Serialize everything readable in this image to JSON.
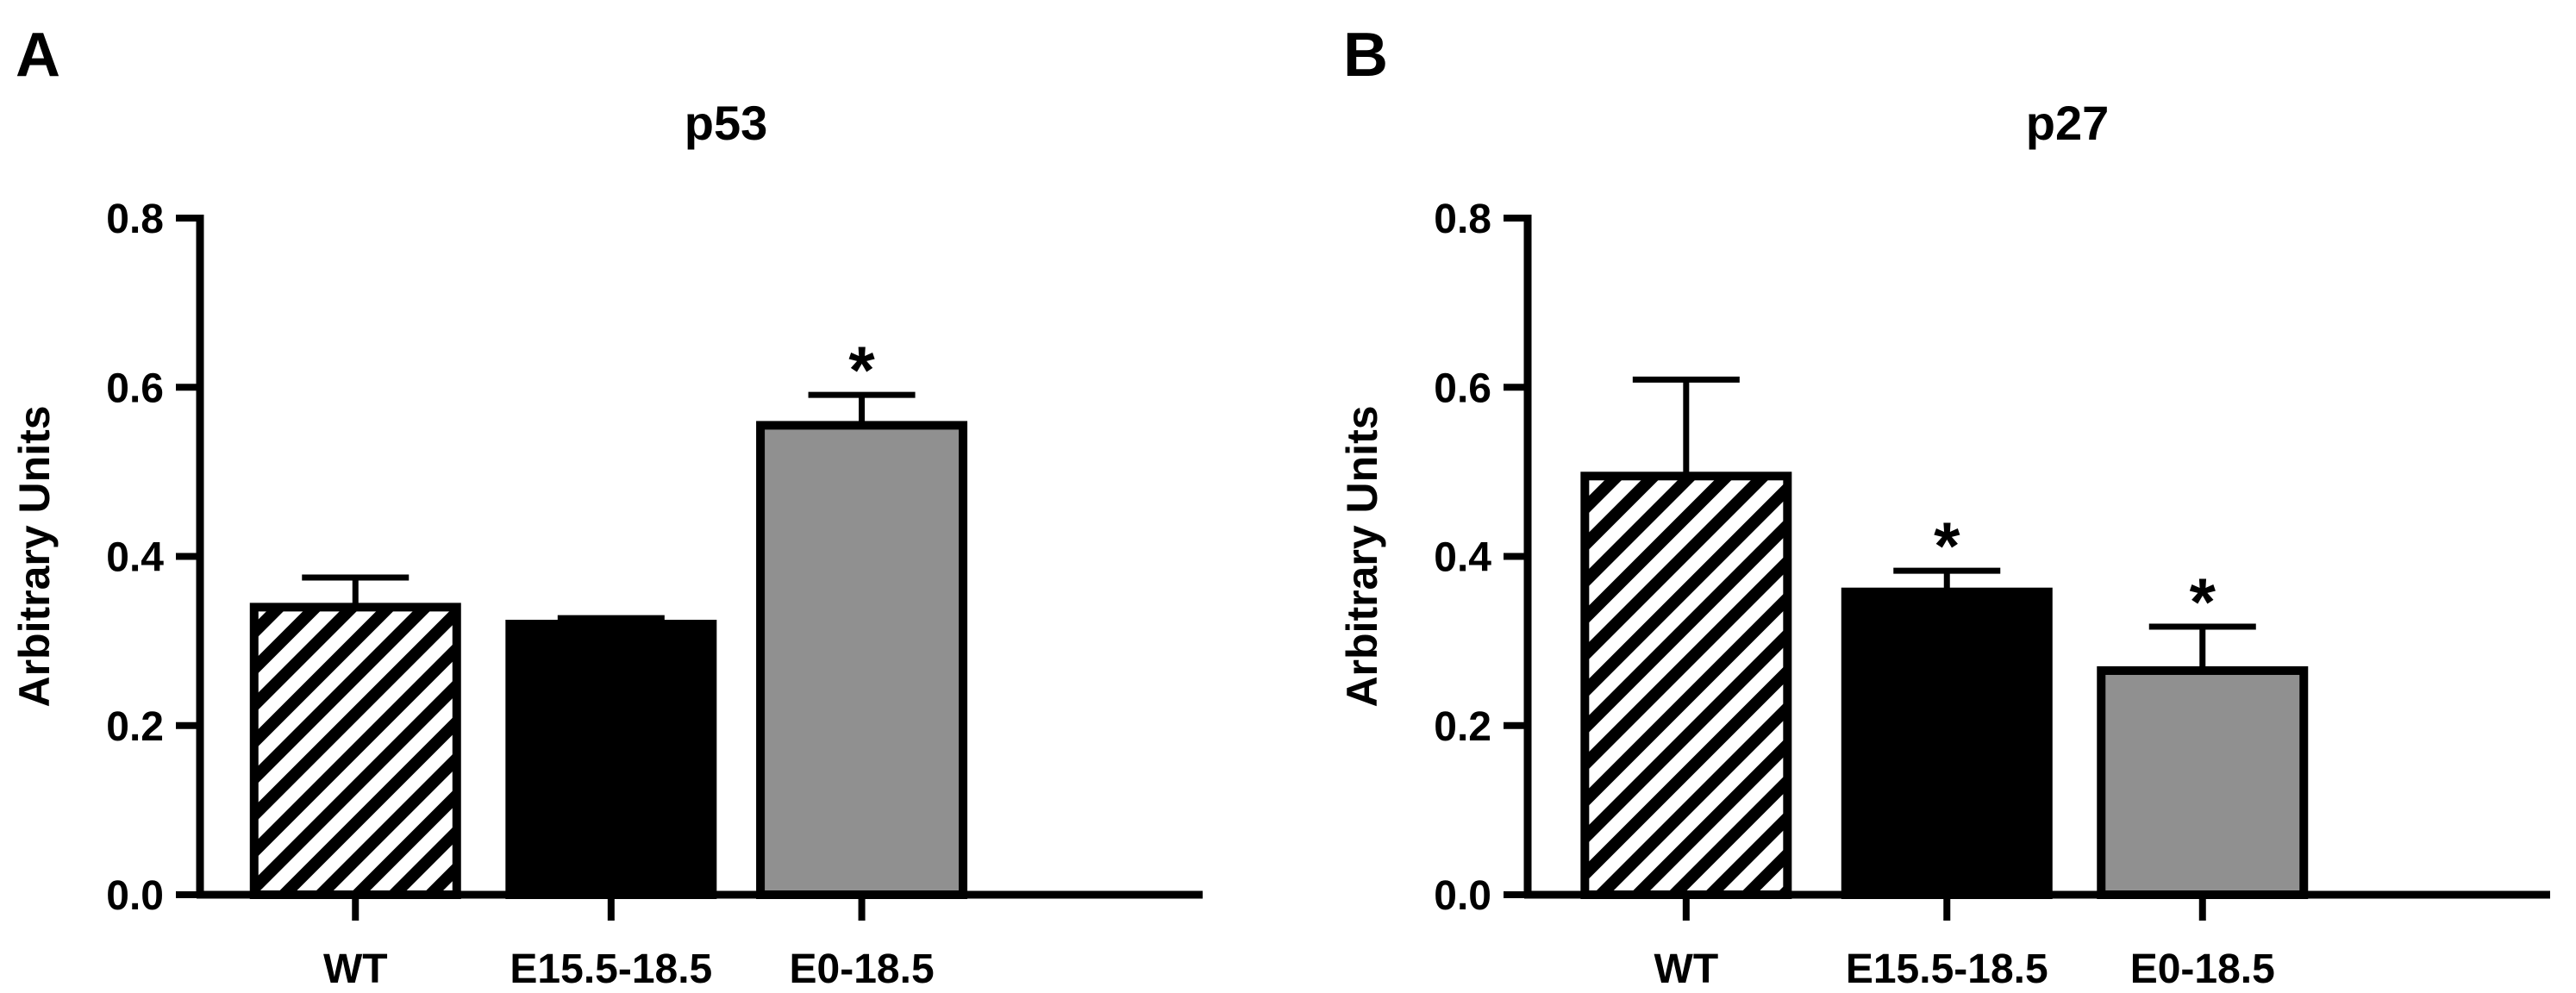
{
  "chart_data": [
    {
      "panel": "A",
      "type": "bar",
      "title": "p53",
      "xlabel": "",
      "ylabel": "Arbitrary Units",
      "ylim": [
        0,
        0.8
      ],
      "yticks": [
        0.0,
        0.2,
        0.4,
        0.6,
        0.8
      ],
      "ytick_labels": [
        "0.0",
        "0.2",
        "0.4",
        "0.6",
        "0.8"
      ],
      "grid": false,
      "categories": [
        "WT",
        "E15.5-18.5",
        "E0-18.5"
      ],
      "values": [
        0.34,
        0.32,
        0.555
      ],
      "errors": [
        0.035,
        0.007,
        0.036
      ],
      "fills": [
        "hatched",
        "#000000",
        "#909090"
      ],
      "significance": [
        "",
        "",
        "*"
      ]
    },
    {
      "panel": "B",
      "type": "bar",
      "title": "p27",
      "xlabel": "",
      "ylabel": "Arbitrary Units",
      "ylim": [
        0,
        0.8
      ],
      "yticks": [
        0.0,
        0.2,
        0.4,
        0.6,
        0.8
      ],
      "ytick_labels": [
        "0.0",
        "0.2",
        "0.4",
        "0.6",
        "0.8"
      ],
      "grid": false,
      "categories": [
        "WT",
        "E15.5-18.5",
        "E0-18.5"
      ],
      "values": [
        0.495,
        0.358,
        0.265
      ],
      "errors": [
        0.114,
        0.025,
        0.052
      ],
      "fills": [
        "hatched",
        "#000000",
        "#909090"
      ],
      "significance": [
        "",
        "*",
        "*"
      ]
    }
  ]
}
